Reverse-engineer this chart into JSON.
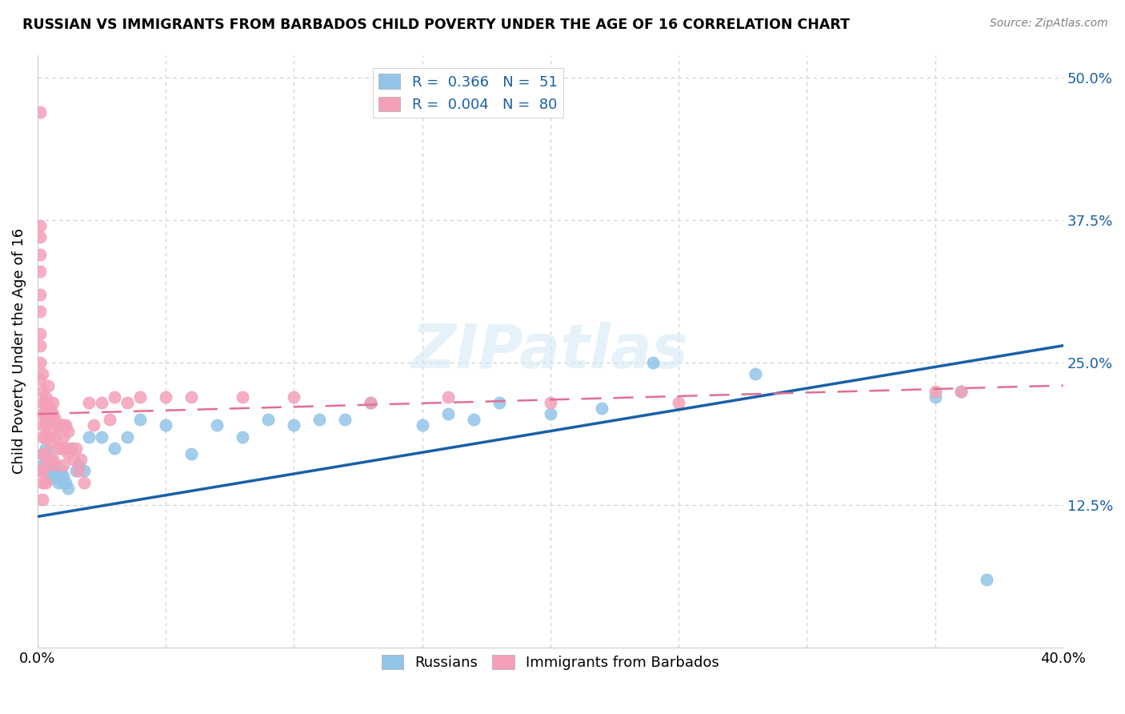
{
  "title": "RUSSIAN VS IMMIGRANTS FROM BARBADOS CHILD POVERTY UNDER THE AGE OF 16 CORRELATION CHART",
  "source": "Source: ZipAtlas.com",
  "ylabel": "Child Poverty Under the Age of 16",
  "xlim": [
    0.0,
    0.4
  ],
  "ylim": [
    0.0,
    0.52
  ],
  "russian_R": 0.366,
  "russian_N": 51,
  "barbados_R": 0.004,
  "barbados_N": 80,
  "russian_color": "#92C5E8",
  "barbados_color": "#F4A0B8",
  "russian_line_color": "#1A5FA8",
  "barbados_line_color": "#E07090",
  "watermark": "ZIPatlas",
  "russian_line_x0": 0.0,
  "russian_line_y0": 0.115,
  "russian_line_x1": 0.4,
  "russian_line_y1": 0.265,
  "barbados_line_x0": 0.0,
  "barbados_line_y0": 0.205,
  "barbados_line_x1": 0.4,
  "barbados_line_y1": 0.23,
  "russian_x": [
    0.002,
    0.002,
    0.003,
    0.003,
    0.003,
    0.004,
    0.004,
    0.004,
    0.005,
    0.005,
    0.005,
    0.006,
    0.006,
    0.007,
    0.007,
    0.008,
    0.008,
    0.009,
    0.01,
    0.01,
    0.011,
    0.012,
    0.013,
    0.015,
    0.016,
    0.018,
    0.02,
    0.025,
    0.03,
    0.035,
    0.04,
    0.05,
    0.06,
    0.07,
    0.08,
    0.09,
    0.1,
    0.11,
    0.12,
    0.13,
    0.15,
    0.16,
    0.17,
    0.18,
    0.2,
    0.22,
    0.24,
    0.28,
    0.35,
    0.36,
    0.37
  ],
  "russian_y": [
    0.16,
    0.17,
    0.165,
    0.175,
    0.155,
    0.16,
    0.165,
    0.17,
    0.155,
    0.148,
    0.16,
    0.15,
    0.16,
    0.15,
    0.155,
    0.145,
    0.15,
    0.155,
    0.145,
    0.15,
    0.145,
    0.14,
    0.175,
    0.155,
    0.16,
    0.155,
    0.185,
    0.185,
    0.175,
    0.185,
    0.2,
    0.195,
    0.17,
    0.195,
    0.185,
    0.2,
    0.195,
    0.2,
    0.2,
    0.215,
    0.195,
    0.205,
    0.2,
    0.215,
    0.205,
    0.21,
    0.25,
    0.24,
    0.22,
    0.225,
    0.06
  ],
  "barbados_x": [
    0.001,
    0.001,
    0.001,
    0.001,
    0.001,
    0.001,
    0.001,
    0.001,
    0.001,
    0.001,
    0.001,
    0.001,
    0.002,
    0.002,
    0.002,
    0.002,
    0.002,
    0.002,
    0.002,
    0.002,
    0.002,
    0.002,
    0.003,
    0.003,
    0.003,
    0.003,
    0.003,
    0.003,
    0.003,
    0.003,
    0.003,
    0.004,
    0.004,
    0.004,
    0.004,
    0.005,
    0.005,
    0.005,
    0.005,
    0.006,
    0.006,
    0.006,
    0.006,
    0.007,
    0.007,
    0.007,
    0.008,
    0.008,
    0.009,
    0.009,
    0.01,
    0.01,
    0.01,
    0.011,
    0.011,
    0.012,
    0.012,
    0.013,
    0.014,
    0.015,
    0.016,
    0.017,
    0.018,
    0.02,
    0.022,
    0.025,
    0.028,
    0.03,
    0.035,
    0.04,
    0.05,
    0.06,
    0.08,
    0.1,
    0.13,
    0.16,
    0.2,
    0.25,
    0.35,
    0.36
  ],
  "barbados_y": [
    0.47,
    0.37,
    0.36,
    0.345,
    0.33,
    0.31,
    0.295,
    0.275,
    0.265,
    0.25,
    0.235,
    0.155,
    0.24,
    0.225,
    0.215,
    0.205,
    0.195,
    0.185,
    0.17,
    0.155,
    0.145,
    0.13,
    0.22,
    0.215,
    0.205,
    0.2,
    0.195,
    0.185,
    0.17,
    0.16,
    0.145,
    0.23,
    0.215,
    0.2,
    0.185,
    0.21,
    0.2,
    0.18,
    0.165,
    0.215,
    0.205,
    0.19,
    0.165,
    0.2,
    0.185,
    0.16,
    0.195,
    0.175,
    0.195,
    0.175,
    0.195,
    0.185,
    0.16,
    0.195,
    0.175,
    0.19,
    0.17,
    0.175,
    0.165,
    0.175,
    0.155,
    0.165,
    0.145,
    0.215,
    0.195,
    0.215,
    0.2,
    0.22,
    0.215,
    0.22,
    0.22,
    0.22,
    0.22,
    0.22,
    0.215,
    0.22,
    0.215,
    0.215,
    0.225,
    0.225
  ]
}
